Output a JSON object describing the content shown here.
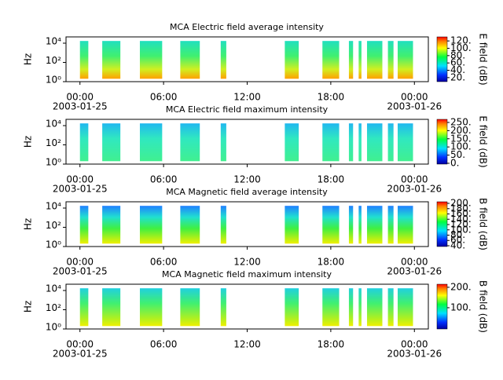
{
  "chart_data": [
    {
      "type": "spectrogram",
      "title": "MCA  Electric field average intensity",
      "ylabel": "Hz",
      "cbar_label": "E field (dB)",
      "xlim": [
        -1,
        25
      ],
      "xticks": [
        {
          "value": 0,
          "label": "00:00"
        },
        {
          "value": 6,
          "label": "06:00"
        },
        {
          "value": 12,
          "label": "12:00"
        },
        {
          "value": 18,
          "label": "18:00"
        },
        {
          "value": 24,
          "label": "00:00"
        }
      ],
      "xdates": [
        {
          "value": 0,
          "label": "2003-01-25"
        },
        {
          "value": 24,
          "label": "2003-01-26"
        }
      ],
      "ylim": [
        1,
        45000
      ],
      "log_y": true,
      "yticks": [
        {
          "value": 1,
          "label": "10⁰"
        },
        {
          "value": 100,
          "label": "10²"
        },
        {
          "value": 10000,
          "label": "10⁴"
        }
      ],
      "frange": [
        2,
        17000
      ],
      "segments": [
        [
          0,
          0.6
        ],
        [
          1.6,
          2.9
        ],
        [
          4.3,
          5.9
        ],
        [
          7.2,
          8.6
        ],
        [
          10.1,
          10.5
        ],
        [
          14.7,
          15.7
        ],
        [
          17.4,
          18.6
        ],
        [
          19.3,
          19.6
        ],
        [
          20.0,
          20.2
        ],
        [
          20.6,
          21.7
        ],
        [
          22.1,
          22.5
        ],
        [
          22.8,
          23.9
        ]
      ],
      "clim": [
        9,
        131
      ],
      "cticks": [
        {
          "value": 20,
          "label": "20."
        },
        {
          "value": 40,
          "label": "40."
        },
        {
          "value": 60,
          "label": "60."
        },
        {
          "value": 80,
          "label": "80."
        },
        {
          "value": 100,
          "label": "100."
        },
        {
          "value": 120,
          "label": "120."
        }
      ]
    },
    {
      "type": "spectrogram",
      "title": "MCA  Electric field maximum intensity",
      "ylabel": "Hz",
      "cbar_label": "E field (dB)",
      "xlim": [
        -1,
        25
      ],
      "xticks": [
        {
          "value": 0,
          "label": "00:00"
        },
        {
          "value": 6,
          "label": "06:00"
        },
        {
          "value": 12,
          "label": "12:00"
        },
        {
          "value": 18,
          "label": "18:00"
        },
        {
          "value": 24,
          "label": "00:00"
        }
      ],
      "xdates": [
        {
          "value": 0,
          "label": "2003-01-25"
        },
        {
          "value": 24,
          "label": "2003-01-26"
        }
      ],
      "ylim": [
        1,
        45000
      ],
      "log_y": true,
      "yticks": [
        {
          "value": 1,
          "label": "10⁰"
        },
        {
          "value": 100,
          "label": "10²"
        },
        {
          "value": 10000,
          "label": "10⁴"
        }
      ],
      "frange": [
        2,
        17000
      ],
      "segments": [
        [
          0,
          0.6
        ],
        [
          1.6,
          2.9
        ],
        [
          4.3,
          5.9
        ],
        [
          7.2,
          8.6
        ],
        [
          10.1,
          10.5
        ],
        [
          14.7,
          15.7
        ],
        [
          17.4,
          18.6
        ],
        [
          19.3,
          19.6
        ],
        [
          20.0,
          20.2
        ],
        [
          20.6,
          21.7
        ],
        [
          22.1,
          22.5
        ],
        [
          22.8,
          23.9
        ]
      ],
      "clim": [
        -5,
        269
      ],
      "cticks": [
        {
          "value": 0,
          "label": "0."
        },
        {
          "value": 50,
          "label": "50."
        },
        {
          "value": 100,
          "label": "100."
        },
        {
          "value": 150,
          "label": "150."
        },
        {
          "value": 200,
          "label": "200."
        },
        {
          "value": 250,
          "label": "250."
        }
      ]
    },
    {
      "type": "spectrogram",
      "title": "MCA  Magnetic field average intensity",
      "ylabel": "Hz",
      "cbar_label": "B field (dB)",
      "xlim": [
        -1,
        25
      ],
      "xticks": [
        {
          "value": 0,
          "label": "00:00"
        },
        {
          "value": 6,
          "label": "06:00"
        },
        {
          "value": 12,
          "label": "12:00"
        },
        {
          "value": 18,
          "label": "18:00"
        },
        {
          "value": 24,
          "label": "00:00"
        }
      ],
      "xdates": [
        {
          "value": 0,
          "label": "2003-01-25"
        },
        {
          "value": 24,
          "label": "2003-01-26"
        }
      ],
      "ylim": [
        1,
        45000
      ],
      "log_y": true,
      "yticks": [
        {
          "value": 1,
          "label": "10⁰"
        },
        {
          "value": 100,
          "label": "10²"
        },
        {
          "value": 10000,
          "label": "10⁴"
        }
      ],
      "frange": [
        2,
        17000
      ],
      "segments": [
        [
          0,
          0.6
        ],
        [
          1.6,
          2.9
        ],
        [
          4.3,
          5.9
        ],
        [
          7.2,
          8.6
        ],
        [
          10.1,
          10.5
        ],
        [
          14.7,
          15.7
        ],
        [
          17.4,
          18.6
        ],
        [
          19.3,
          19.6
        ],
        [
          20.0,
          20.2
        ],
        [
          20.6,
          21.7
        ],
        [
          22.1,
          22.5
        ],
        [
          22.8,
          23.9
        ]
      ],
      "clim": [
        37,
        206
      ],
      "cticks": [
        {
          "value": 40,
          "label": "40."
        },
        {
          "value": 60,
          "label": "60."
        },
        {
          "value": 80,
          "label": "80."
        },
        {
          "value": 100,
          "label": "100."
        },
        {
          "value": 120,
          "label": "120."
        },
        {
          "value": 140,
          "label": "140."
        },
        {
          "value": 160,
          "label": "160."
        },
        {
          "value": 180,
          "label": "180."
        },
        {
          "value": 200,
          "label": "200."
        }
      ]
    },
    {
      "type": "spectrogram",
      "title": "MCA  Magnetic field maximum intensity",
      "ylabel": "Hz",
      "cbar_label": "B field (dB)",
      "xlim": [
        -1,
        25
      ],
      "xticks": [
        {
          "value": 0,
          "label": "00:00"
        },
        {
          "value": 6,
          "label": "06:00"
        },
        {
          "value": 12,
          "label": "12:00"
        },
        {
          "value": 18,
          "label": "18:00"
        },
        {
          "value": 24,
          "label": "00:00"
        }
      ],
      "xdates": [
        {
          "value": 0,
          "label": "2003-01-25"
        },
        {
          "value": 24,
          "label": "2003-01-26"
        }
      ],
      "ylim": [
        1,
        45000
      ],
      "log_y": true,
      "yticks": [
        {
          "value": 1,
          "label": "10⁰"
        },
        {
          "value": 100,
          "label": "10²"
        },
        {
          "value": 10000,
          "label": "10⁴"
        }
      ],
      "frange": [
        2,
        17000
      ],
      "segments": [
        [
          0,
          0.6
        ],
        [
          1.6,
          2.9
        ],
        [
          4.3,
          5.9
        ],
        [
          7.2,
          8.6
        ],
        [
          10.1,
          10.5
        ],
        [
          14.7,
          15.7
        ],
        [
          17.4,
          18.6
        ],
        [
          19.3,
          19.6
        ],
        [
          20.0,
          20.2
        ],
        [
          20.6,
          21.7
        ],
        [
          22.1,
          22.5
        ],
        [
          22.8,
          23.9
        ]
      ],
      "clim": [
        -4,
        215
      ],
      "cticks": [
        {
          "value": 100,
          "label": "100."
        },
        {
          "value": 200,
          "label": "200."
        }
      ]
    }
  ]
}
